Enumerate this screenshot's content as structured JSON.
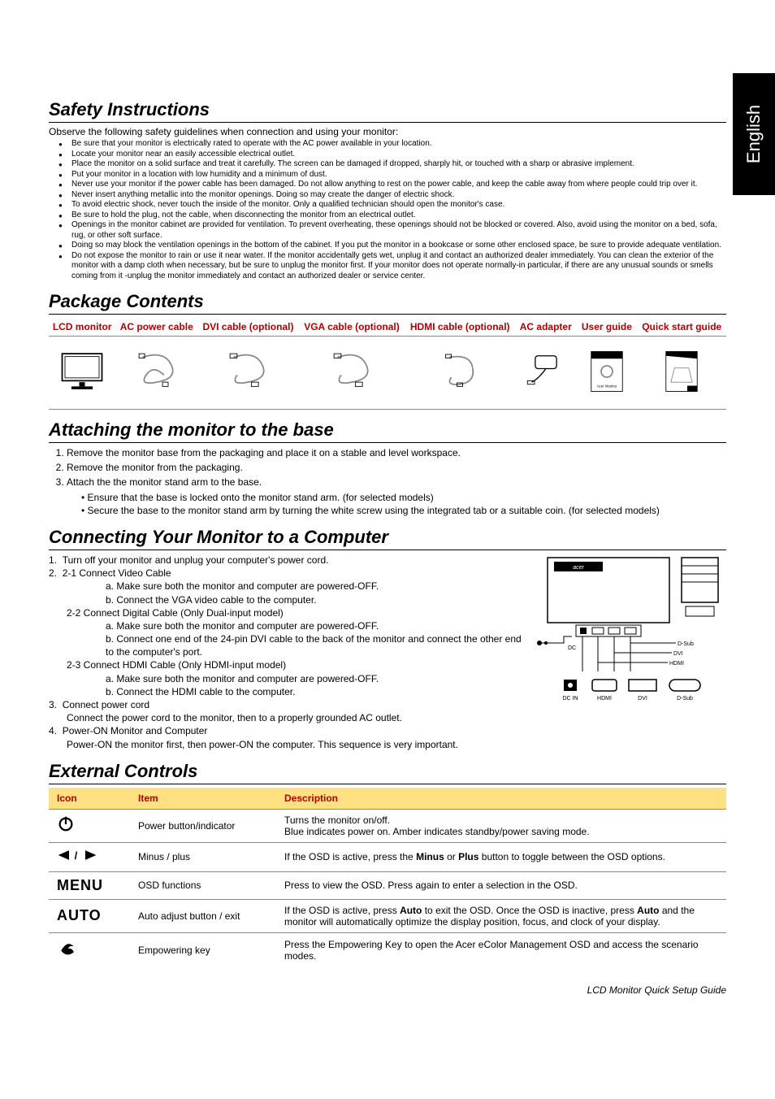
{
  "sideTab": "English",
  "sections": {
    "safety": {
      "title": "Safety Instructions",
      "intro": "Observe the following safety guidelines when connection and using your monitor:",
      "bullets": [
        "Be sure that your monitor is electrically rated to operate with the AC power available in your location.",
        "Locate your monitor near an easily accessible electrical outlet.",
        "Place the monitor on a solid surface and treat it carefully. The screen can be damaged if dropped, sharply hit, or touched with a sharp or abrasive implement.",
        "Put your monitor in a location with low humidity and a minimum of dust.",
        "Never use your monitor if the power cable has been damaged. Do not allow anything to rest on the power cable, and keep the cable away from where people could trip over it.",
        "Never insert anything metallic into the monitor openings. Doing so may create the danger of electric shock.",
        "To avoid electric shock, never touch the inside of the monitor. Only a qualified technician should open the monitor's case.",
        "Be sure to hold the plug, not the cable, when disconnecting the monitor from an electrical outlet.",
        "Openings in the monitor cabinet are provided for ventilation. To prevent overheating, these openings should not be blocked or covered. Also, avoid using the monitor on a bed, sofa, rug, or other soft surface.",
        "Doing so may block the ventilation openings in the bottom of the cabinet. If you put the monitor in a bookcase or some other enclosed space, be sure to provide adequate ventilation.",
        "Do not expose the monitor to rain or use it near water. If the monitor accidentally gets wet, unplug it and contact an authorized dealer immediately. You can clean the exterior of the monitor with a damp cloth when necessary, but be sure to unplug the monitor first. If your monitor does not operate normally-in particular, if there are any unusual sounds or smells coming from it -unplug the monitor immediately and contact an authorized dealer or service center."
      ]
    },
    "package": {
      "title": "Package Contents",
      "headers": [
        "LCD monitor",
        "AC power cable",
        "DVI cable (optional)",
        "VGA cable (optional)",
        "HDMI cable (optional)",
        "AC adapter",
        "User guide",
        "Quick start guide"
      ]
    },
    "attaching": {
      "title": "Attaching the monitor to the base",
      "steps": [
        "Remove the monitor base from the packaging and place it on a stable and level workspace.",
        "Remove the monitor from the packaging.",
        "Attach the the monitor stand arm to the base."
      ],
      "substeps": [
        "• Ensure that the base is locked onto the monitor stand arm. (for selected models)",
        "• Secure the base to the monitor stand arm by turning the white screw using the integrated tab or a suitable coin. (for selected models)"
      ]
    },
    "connecting": {
      "title": "Connecting Your Monitor to a Computer",
      "step1": "Turn off your monitor and unplug your computer's power cord.",
      "step2_intro": "2-1    Connect Video Cable",
      "step2_1a": "a. Make sure both the monitor and computer are powered-OFF.",
      "step2_1b": "b. Connect the VGA video cable to the computer.",
      "step2_2": "2-2    Connect Digital Cable (Only Dual-input model)",
      "step2_2a": "a. Make sure both the monitor and computer are powered-OFF.",
      "step2_2b": "b. Connect one end of the 24-pin DVI cable to the back of the monitor and connect the other end to the computer's port.",
      "step2_3": "2-3    Connect HDMI Cable (Only HDMI-input model)",
      "step2_3a": "a. Make sure both the monitor and computer are powered-OFF.",
      "step2_3b": "b. Connect the HDMI cable to the computer.",
      "step3": "Connect power cord",
      "step3_sub": "Connect the power cord to the monitor, then to a properly grounded AC outlet.",
      "step4": "Power-ON Monitor and Computer",
      "step4_sub": "Power-ON the monitor first, then power-ON the computer. This sequence is very important.",
      "diagram_labels": {
        "dsub": "D-Sub",
        "dvi": "DVI",
        "hdmi": "HDMI",
        "dcin": "DC IN",
        "dc": "DC"
      }
    },
    "controls": {
      "title": "External Controls",
      "headers": {
        "icon": "Icon",
        "item": "Item",
        "desc": "Description"
      },
      "rows": [
        {
          "name": "power",
          "item": "Power button/indicator",
          "desc": "Turns the monitor on/off.\nBlue indicates power on. Amber indicates standby/power saving mode."
        },
        {
          "name": "minus-plus",
          "item": "Minus / plus",
          "desc_pre": "If the OSD is active, press the ",
          "desc_b1": "Minus",
          "desc_mid": " or ",
          "desc_b2": "Plus",
          "desc_post": " button to toggle between the OSD options."
        },
        {
          "name": "menu",
          "item": "OSD functions",
          "desc": "Press to view the OSD. Press again to enter a selection in the OSD."
        },
        {
          "name": "auto",
          "item": "Auto adjust button / exit",
          "desc_pre": "If the OSD is active, press ",
          "desc_b1": "Auto",
          "desc_mid": " to exit the OSD. Once the OSD is inactive, press ",
          "desc_b2": "Auto",
          "desc_post": " and the monitor will automatically optimize the display position, focus, and clock of your display."
        },
        {
          "name": "empower",
          "item": "Empowering key",
          "desc": "Press the Empowering Key to open the Acer eColor Management OSD and access the scenario modes."
        }
      ],
      "icon_text": {
        "menu": "MENU",
        "auto": "AUTO"
      }
    }
  },
  "footer": "LCD Monitor Quick Setup Guide",
  "colors": {
    "accent": "#b30000",
    "header_bg": "#ffe082"
  }
}
